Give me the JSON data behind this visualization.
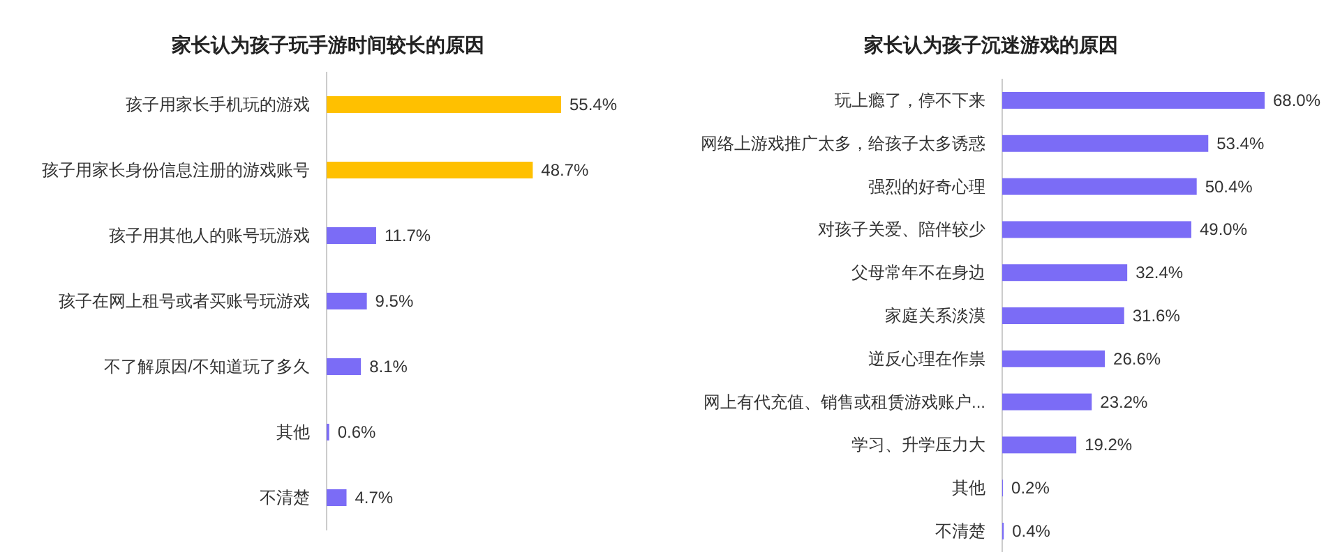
{
  "chart_data": [
    {
      "type": "bar",
      "orientation": "horizontal",
      "title": "家长认为孩子玩手游时间较长的原因",
      "categories": [
        "孩子用家长手机玩的游戏",
        "孩子用家长身份信息注册的游戏账号",
        "孩子用其他人的账号玩游戏",
        "孩子在网上租号或者买账号玩游戏",
        "不了解原因/不知道玩了多久",
        "其他",
        "不清楚"
      ],
      "values": [
        55.4,
        48.7,
        11.7,
        9.5,
        8.1,
        0.6,
        4.7
      ],
      "colors": [
        "#ffc000",
        "#ffc000",
        "#7b6cf6",
        "#7b6cf6",
        "#7b6cf6",
        "#7b6cf6",
        "#7b6cf6"
      ],
      "value_labels": [
        "55.4%",
        "48.7%",
        "11.7%",
        "9.5%",
        "8.1%",
        "0.6%",
        "4.7%"
      ]
    },
    {
      "type": "bar",
      "orientation": "horizontal",
      "title": "家长认为孩子沉迷游戏的原因",
      "categories": [
        "玩上瘾了，停不下来",
        "网络上游戏推广太多，给孩子太多诱惑",
        "强烈的好奇心理",
        "对孩子关爱、陪伴较少",
        "父母常年不在身边",
        "家庭关系淡漠",
        "逆反心理在作祟",
        "网上有代充值、销售或租赁游戏账户...",
        "学习、升学压力大",
        "其他",
        "不清楚"
      ],
      "values": [
        68.0,
        53.4,
        50.4,
        49.0,
        32.4,
        31.6,
        26.6,
        23.2,
        19.2,
        0.2,
        0.4
      ],
      "colors": [
        "#7b6cf6",
        "#7b6cf6",
        "#7b6cf6",
        "#7b6cf6",
        "#7b6cf6",
        "#7b6cf6",
        "#7b6cf6",
        "#7b6cf6",
        "#7b6cf6",
        "#7b6cf6",
        "#7b6cf6"
      ],
      "value_labels": [
        "68.0%",
        "53.4%",
        "50.4%",
        "49.0%",
        "32.4%",
        "31.6%",
        "26.6%",
        "23.2%",
        "19.2%",
        "0.2%",
        "0.4%"
      ]
    }
  ]
}
